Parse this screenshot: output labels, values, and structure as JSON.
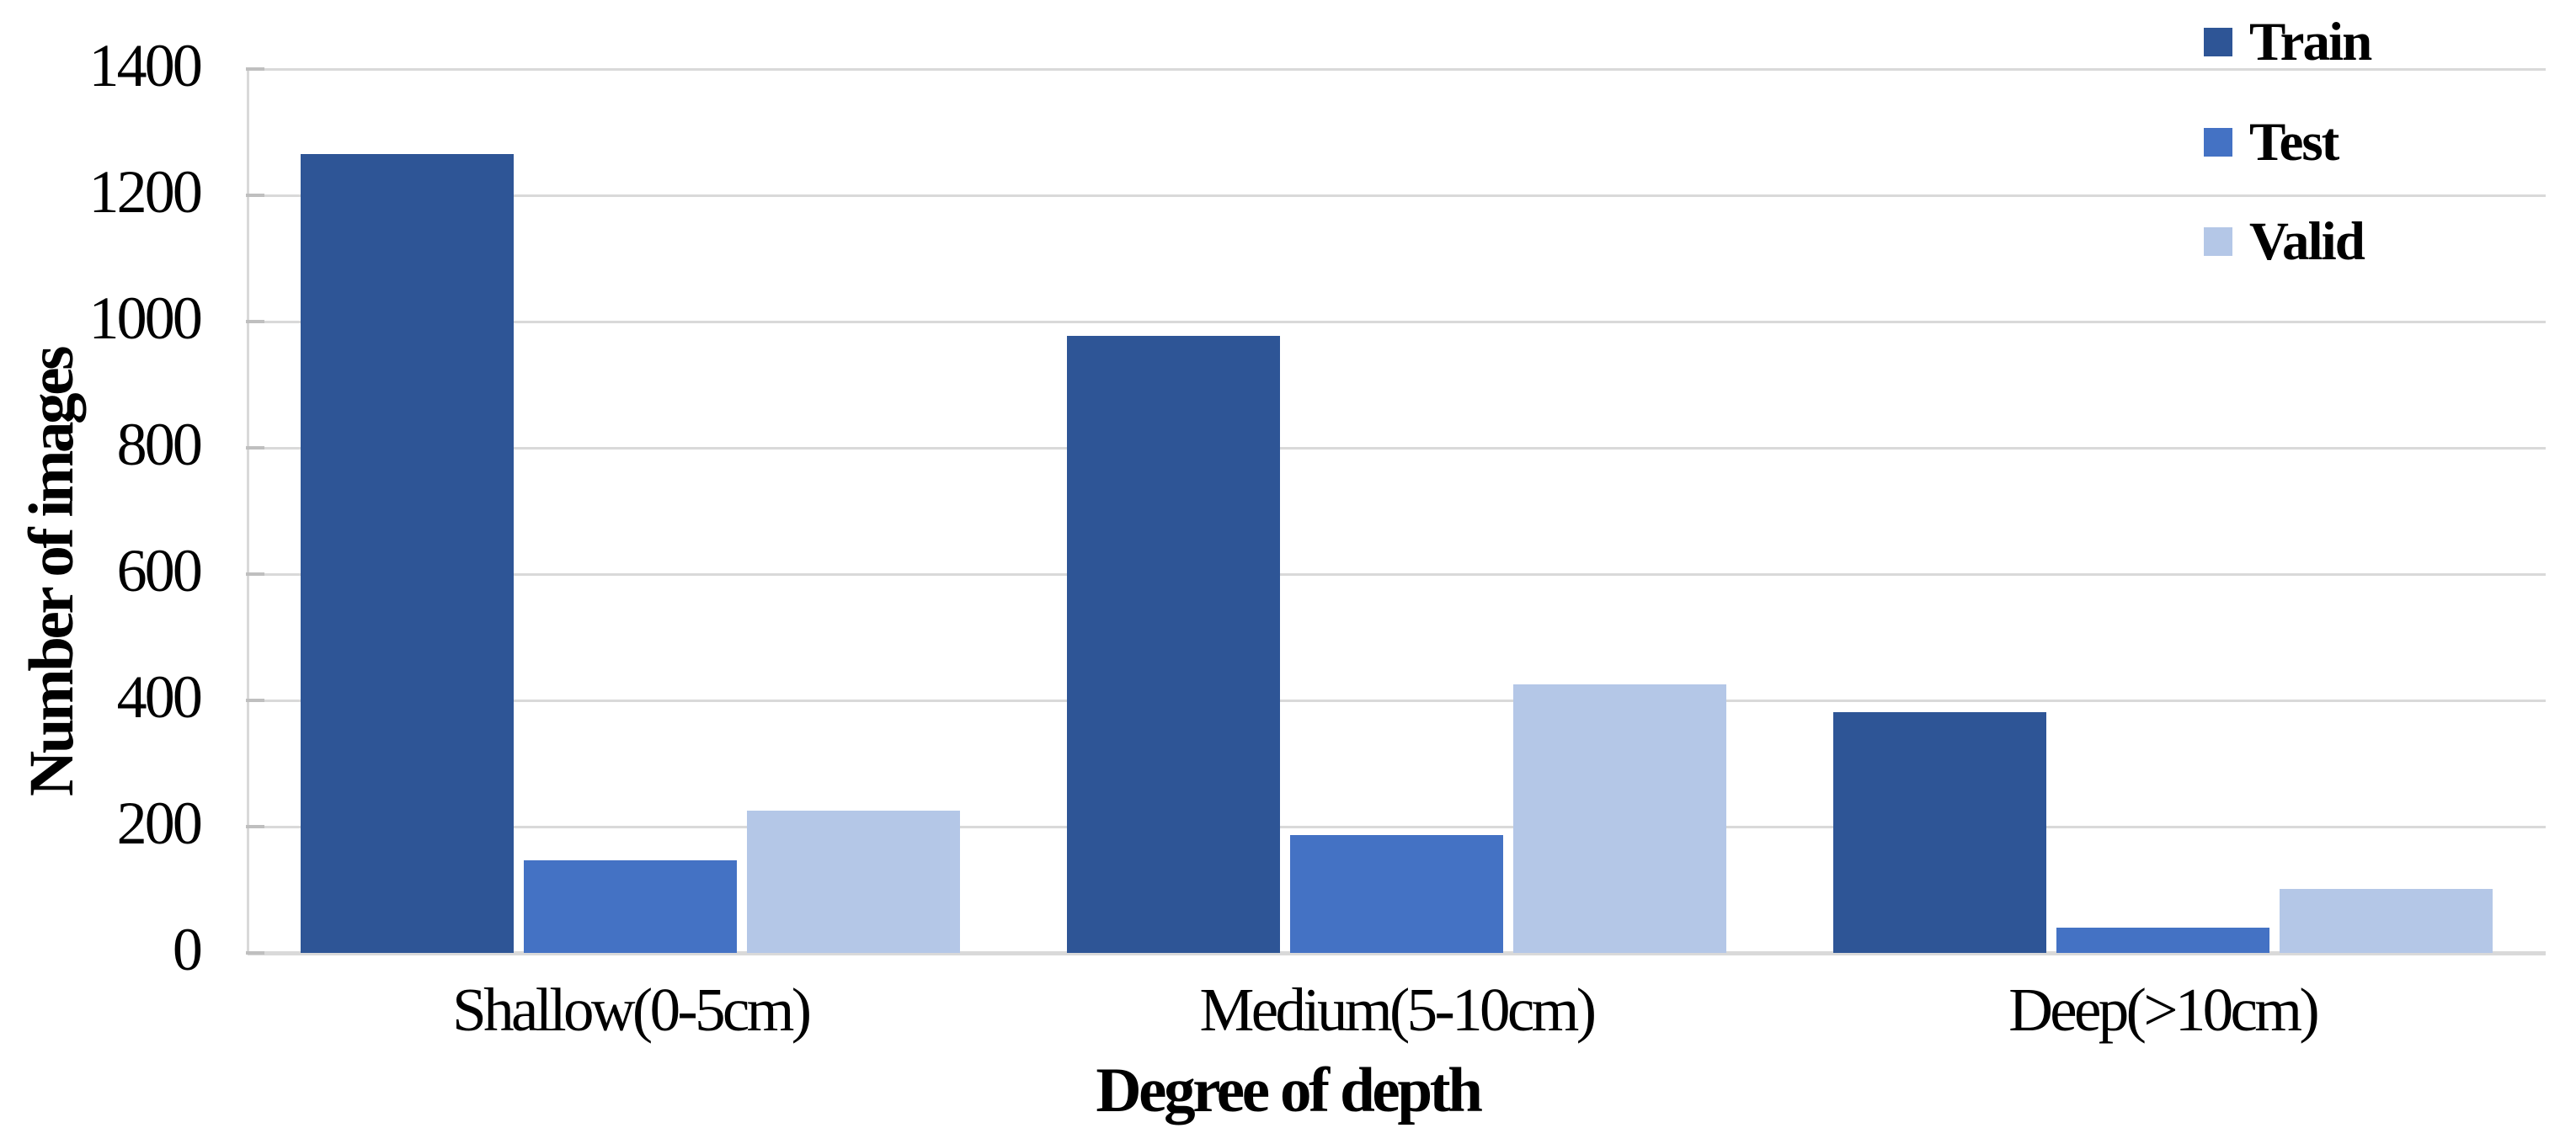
{
  "chart_data": {
    "type": "bar",
    "title": "",
    "categories": [
      "Shallow(0-5cm)",
      "Medium(5-10cm)",
      "Deep(>10cm)"
    ],
    "series": [
      {
        "name": "Train",
        "color": "#2E5596",
        "values": [
          1265,
          977,
          381
        ]
      },
      {
        "name": "Test",
        "color": "#4472C4",
        "values": [
          147,
          187,
          40
        ]
      },
      {
        "name": "Valid",
        "color": "#B4C7E7",
        "values": [
          225,
          425,
          102
        ]
      }
    ],
    "xlabel": "Degree of depth",
    "ylabel": "Number of images",
    "ylim": [
      0,
      1400
    ],
    "yticks": [
      0,
      200,
      400,
      600,
      800,
      1000,
      1200,
      1400
    ],
    "grid": true,
    "legend": {
      "position": "top-right",
      "labels": [
        "Train",
        "Test",
        "Valid"
      ]
    }
  },
  "colors": {
    "background": "#FFFFFF",
    "gridline": "#D9D9D9",
    "baseline": "#D9D9D9",
    "axis_line": "#D9D9D9",
    "tick_mark": "#BFBFBF",
    "text": "#000000"
  }
}
